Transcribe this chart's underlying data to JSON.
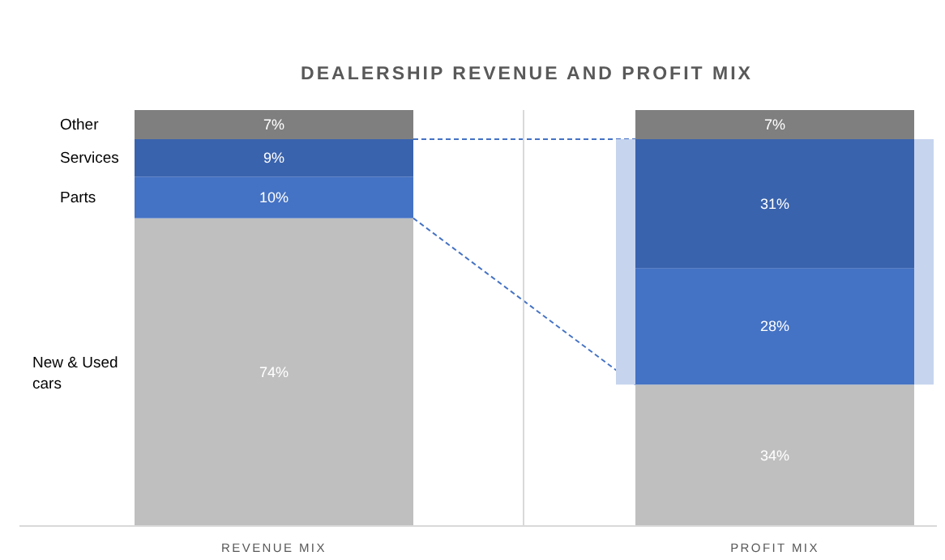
{
  "chart_data": {
    "type": "bar",
    "title": "DEALERSHIP REVENUE AND PROFIT MIX",
    "categories": [
      "REVENUE MIX",
      "PROFIT MIX"
    ],
    "stacked": true,
    "legend": false,
    "bands": [
      {
        "axis": "y",
        "from": 34,
        "to": 93,
        "color": "#c6d4ee"
      }
    ],
    "series": [
      {
        "name": "New & Used cars",
        "color": "#bfbfbf",
        "values": [
          74,
          34
        ],
        "value_labels": [
          "74%",
          "34%"
        ]
      },
      {
        "name": "Parts",
        "color": "#4472c4",
        "values": [
          10,
          28
        ],
        "value_labels": [
          "10%",
          "28%"
        ]
      },
      {
        "name": "Services",
        "color": "#3a63ad",
        "values": [
          9,
          31
        ],
        "value_labels": [
          "9%",
          "31%"
        ]
      },
      {
        "name": "Other",
        "color": "#7f7f7f",
        "values": [
          7,
          7
        ],
        "value_labels": [
          "7%",
          "7%"
        ]
      }
    ]
  }
}
